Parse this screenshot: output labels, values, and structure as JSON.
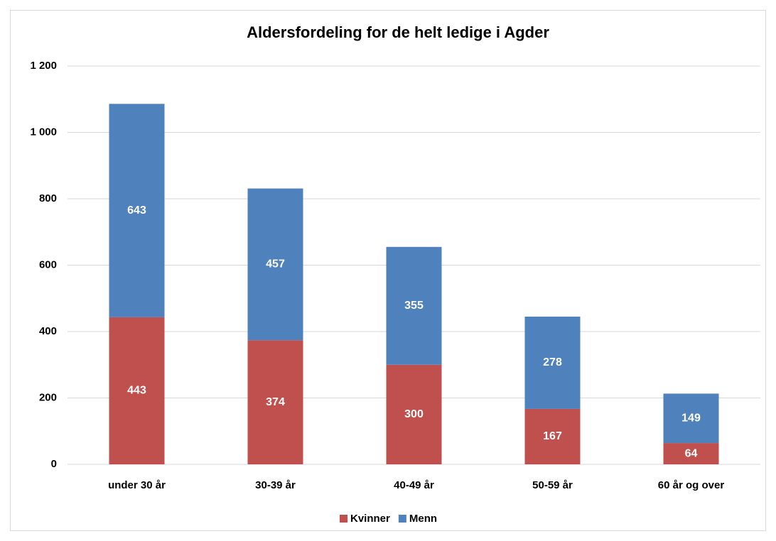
{
  "chart_data": {
    "type": "stacked_bar",
    "title": "Aldersfordeling for de helt ledige i Agder",
    "categories": [
      "under 30 år",
      "30-39 år",
      "40-49 år",
      "50-59 år",
      "60 år og over"
    ],
    "series": [
      {
        "name": "Kvinner",
        "color": "#c0504d",
        "values": [
          443,
          374,
          300,
          167,
          64
        ]
      },
      {
        "name": "Menn",
        "color": "#4f81bd",
        "values": [
          643,
          457,
          355,
          278,
          149
        ]
      }
    ],
    "ylim": [
      0,
      1200
    ],
    "yticks": [
      0,
      200,
      400,
      600,
      800,
      {
        "value": 1000,
        "label": "1 000"
      },
      {
        "value": 1200,
        "label": "1 200"
      }
    ],
    "grid": true,
    "legend": "bottom"
  }
}
